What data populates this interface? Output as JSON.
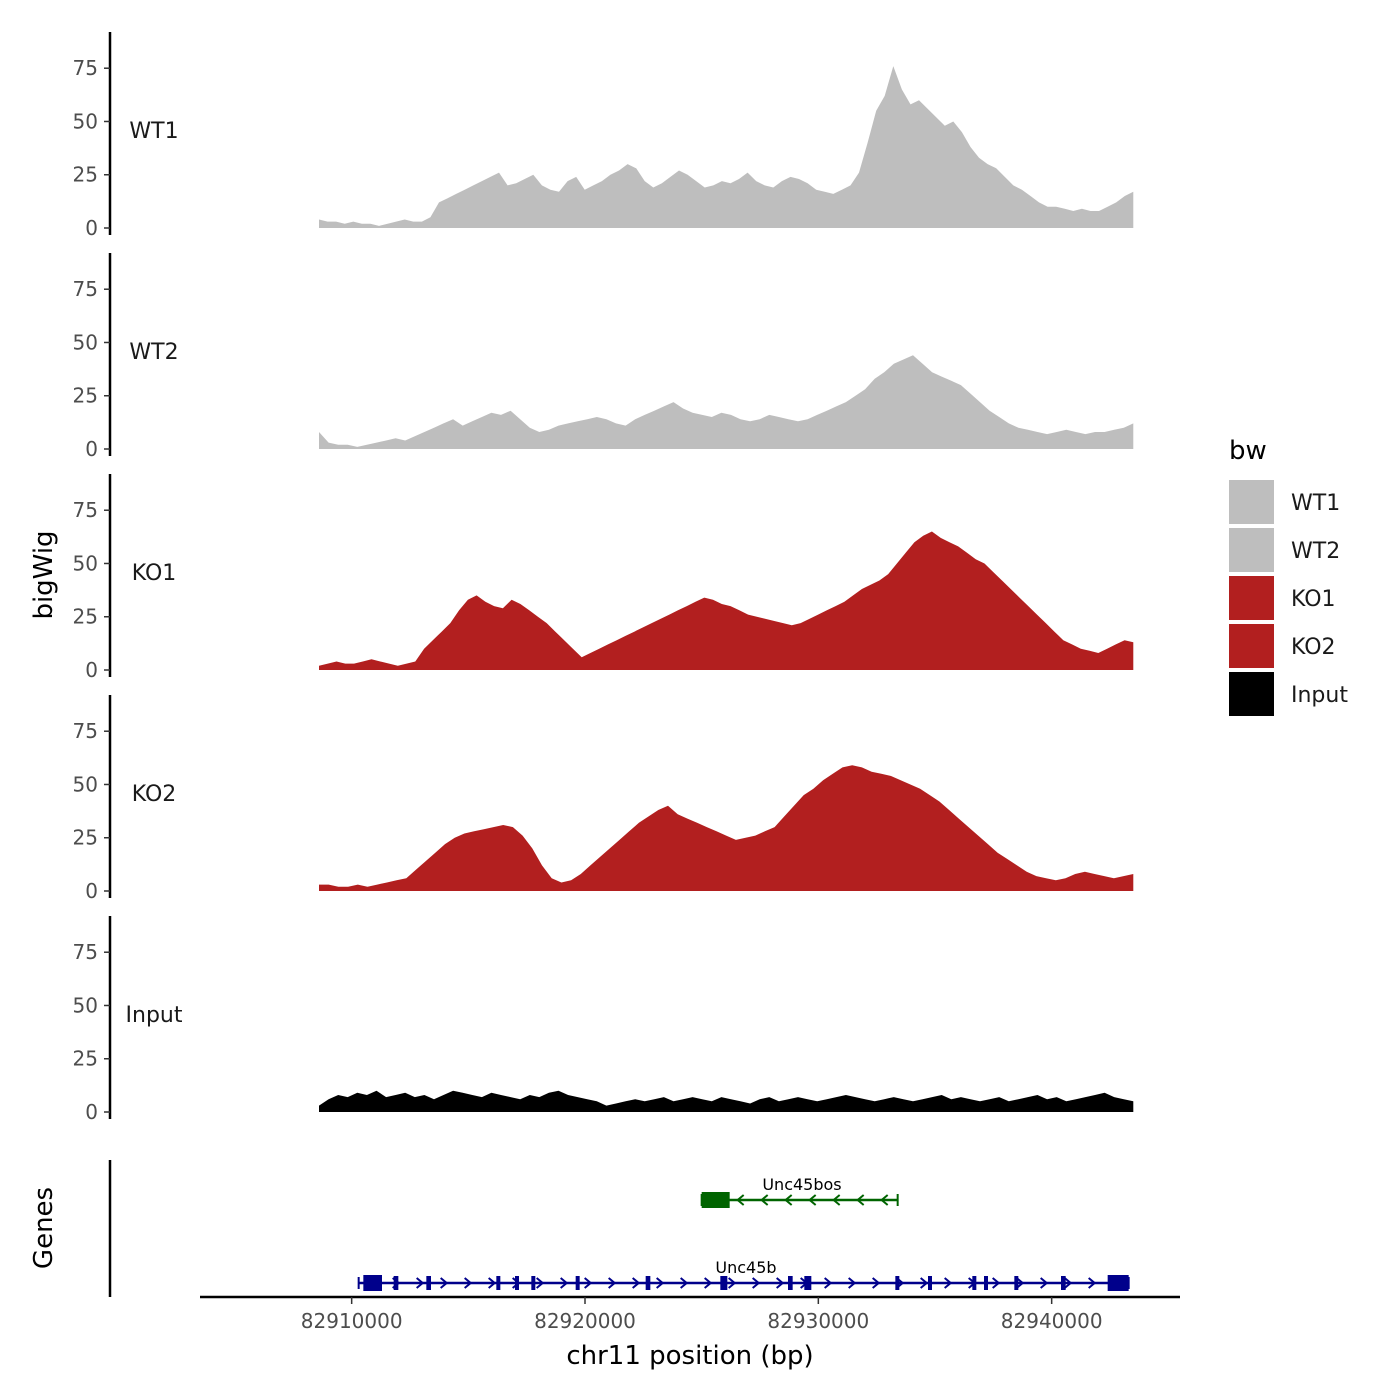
{
  "chart_data": {
    "type": "area",
    "title": "",
    "ylabel": "bigWig",
    "xlabel": "chr11 position (bp)",
    "xlim": [
      82903500,
      82945500
    ],
    "signal_x_range": [
      82908600,
      82943500
    ],
    "ylim": [
      0,
      92
    ],
    "y_ticks": [
      0,
      25,
      50,
      75
    ],
    "x_ticks": [
      82910000,
      82920000,
      82930000,
      82940000
    ],
    "x_tick_labels": [
      "82910000",
      "82920000",
      "82930000",
      "82940000"
    ],
    "series": [
      {
        "name": "WT1",
        "color": "#bebebe",
        "values": [
          4,
          3,
          3,
          2,
          3,
          2,
          2,
          1,
          2,
          3,
          4,
          3,
          3,
          5,
          12,
          14,
          16,
          18,
          20,
          22,
          24,
          26,
          20,
          21,
          23,
          25,
          20,
          18,
          17,
          22,
          24,
          18,
          20,
          22,
          25,
          27,
          30,
          28,
          22,
          19,
          21,
          24,
          27,
          25,
          22,
          19,
          20,
          22,
          21,
          23,
          26,
          22,
          20,
          19,
          22,
          24,
          23,
          21,
          18,
          17,
          16,
          18,
          20,
          26,
          40,
          55,
          62,
          76,
          65,
          58,
          60,
          56,
          52,
          48,
          50,
          45,
          38,
          33,
          30,
          28,
          24,
          20,
          18,
          15,
          12,
          10,
          10,
          9,
          8,
          9,
          8,
          8,
          10,
          12,
          15,
          17
        ]
      },
      {
        "name": "WT2",
        "color": "#bebebe",
        "values": [
          8,
          3,
          2,
          2,
          1,
          2,
          3,
          4,
          5,
          4,
          6,
          8,
          10,
          12,
          14,
          11,
          13,
          15,
          17,
          16,
          18,
          14,
          10,
          8,
          9,
          11,
          12,
          13,
          14,
          15,
          14,
          12,
          11,
          14,
          16,
          18,
          20,
          22,
          19,
          17,
          16,
          15,
          17,
          16,
          14,
          13,
          14,
          16,
          15,
          14,
          13,
          14,
          16,
          18,
          20,
          22,
          25,
          28,
          33,
          36,
          40,
          42,
          44,
          40,
          36,
          34,
          32,
          30,
          26,
          22,
          18,
          15,
          12,
          10,
          9,
          8,
          7,
          8,
          9,
          8,
          7,
          8,
          8,
          9,
          10,
          12
        ]
      },
      {
        "name": "KO1",
        "color": "#b21f1f",
        "values": [
          2,
          3,
          4,
          3,
          3,
          4,
          5,
          4,
          3,
          2,
          3,
          4,
          10,
          14,
          18,
          22,
          28,
          33,
          35,
          32,
          30,
          29,
          33,
          31,
          28,
          25,
          22,
          18,
          14,
          10,
          6,
          8,
          10,
          12,
          14,
          16,
          18,
          20,
          22,
          24,
          26,
          28,
          30,
          32,
          34,
          33,
          31,
          30,
          28,
          26,
          25,
          24,
          23,
          22,
          21,
          22,
          24,
          26,
          28,
          30,
          32,
          35,
          38,
          40,
          42,
          45,
          50,
          55,
          60,
          63,
          65,
          62,
          60,
          58,
          55,
          52,
          50,
          46,
          42,
          38,
          34,
          30,
          26,
          22,
          18,
          14,
          12,
          10,
          9,
          8,
          10,
          12,
          14,
          13
        ]
      },
      {
        "name": "KO2",
        "color": "#b21f1f",
        "values": [
          3,
          3,
          2,
          2,
          3,
          2,
          3,
          4,
          5,
          6,
          10,
          14,
          18,
          22,
          25,
          27,
          28,
          29,
          30,
          31,
          30,
          26,
          20,
          12,
          6,
          4,
          5,
          8,
          12,
          16,
          20,
          24,
          28,
          32,
          35,
          38,
          40,
          36,
          34,
          32,
          30,
          28,
          26,
          24,
          25,
          26,
          28,
          30,
          35,
          40,
          45,
          48,
          52,
          55,
          58,
          59,
          58,
          56,
          55,
          54,
          52,
          50,
          48,
          45,
          42,
          38,
          34,
          30,
          26,
          22,
          18,
          15,
          12,
          9,
          7,
          6,
          5,
          6,
          8,
          9,
          8,
          7,
          6,
          7,
          8
        ]
      },
      {
        "name": "Input",
        "color": "#000000",
        "values": [
          3,
          6,
          8,
          7,
          9,
          8,
          10,
          7,
          8,
          9,
          7,
          8,
          6,
          8,
          10,
          9,
          8,
          7,
          9,
          8,
          7,
          6,
          8,
          7,
          9,
          10,
          8,
          7,
          6,
          5,
          3,
          4,
          5,
          6,
          5,
          6,
          7,
          5,
          6,
          7,
          6,
          5,
          7,
          6,
          5,
          4,
          6,
          7,
          5,
          6,
          7,
          6,
          5,
          6,
          7,
          8,
          7,
          6,
          5,
          6,
          7,
          6,
          5,
          6,
          7,
          8,
          6,
          7,
          6,
          5,
          6,
          7,
          5,
          6,
          7,
          8,
          6,
          7,
          5,
          6,
          7,
          8,
          9,
          7,
          6,
          5
        ]
      }
    ],
    "genes": [
      {
        "name": "Unc45bos",
        "strand": "-",
        "color": "#006400",
        "start": 82925000,
        "end": 82933400,
        "exons": [
          [
            82925000,
            82926200
          ]
        ]
      },
      {
        "name": "Unc45b",
        "strand": "+",
        "color": "#00008b",
        "start": 82910300,
        "end": 82943300,
        "exons": [
          [
            82910500,
            82911300
          ],
          [
            82911800,
            82912000
          ],
          [
            82913200,
            82913400
          ],
          [
            82916200,
            82916350
          ],
          [
            82917000,
            82917150
          ],
          [
            82917700,
            82917850
          ],
          [
            82919600,
            82919750
          ],
          [
            82922600,
            82922800
          ],
          [
            82925800,
            82926100
          ],
          [
            82928700,
            82928900
          ],
          [
            82929400,
            82929700
          ],
          [
            82933300,
            82933400
          ],
          [
            82934700,
            82934800
          ],
          [
            82936600,
            82936700
          ],
          [
            82937100,
            82937200
          ],
          [
            82938400,
            82938500
          ],
          [
            82940400,
            82940600
          ],
          [
            82942400,
            82943300
          ]
        ]
      }
    ],
    "genes_track_label": "Genes",
    "legend": {
      "title": "bw",
      "position": "right",
      "entries": [
        {
          "label": "WT1",
          "color": "#bebebe"
        },
        {
          "label": "WT2",
          "color": "#bebebe"
        },
        {
          "label": "KO1",
          "color": "#b21f1f"
        },
        {
          "label": "KO2",
          "color": "#b21f1f"
        },
        {
          "label": "Input",
          "color": "#000000"
        }
      ]
    }
  }
}
